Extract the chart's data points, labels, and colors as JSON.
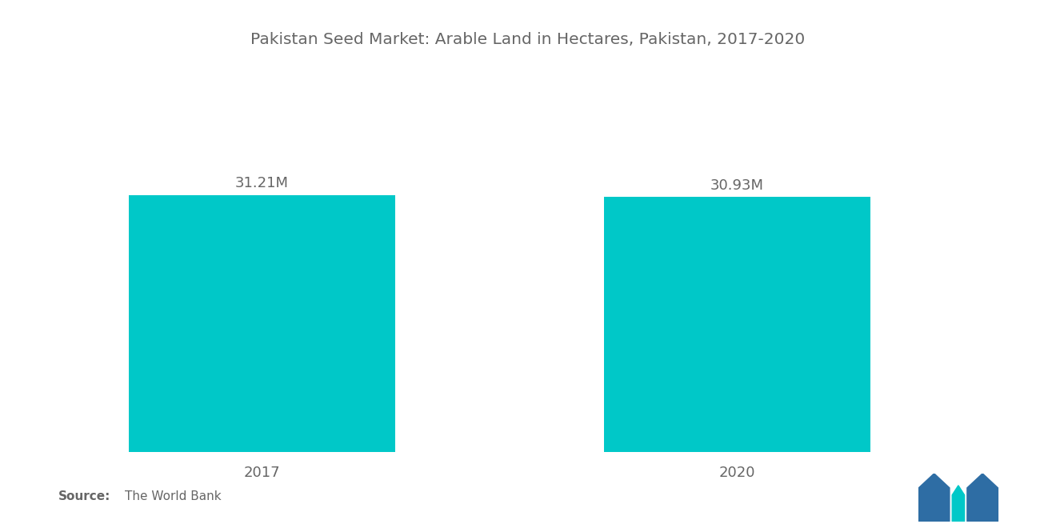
{
  "title": "Pakistan Seed Market: Arable Land in Hectares, Pakistan, 2017-2020",
  "categories": [
    "2017",
    "2020"
  ],
  "values": [
    31.21,
    30.93
  ],
  "labels": [
    "31.21M",
    "30.93M"
  ],
  "bar_color": "#00C8C8",
  "background_color": "#ffffff",
  "title_fontsize": 14.5,
  "label_fontsize": 13,
  "tick_fontsize": 13,
  "source_bold": "Source:",
  "source_text": "The World Bank",
  "ylim": [
    0,
    40
  ],
  "bar_width": 0.28,
  "x_positions": [
    0.22,
    0.72
  ],
  "xlim": [
    0.0,
    1.0
  ],
  "text_color": "#666666"
}
